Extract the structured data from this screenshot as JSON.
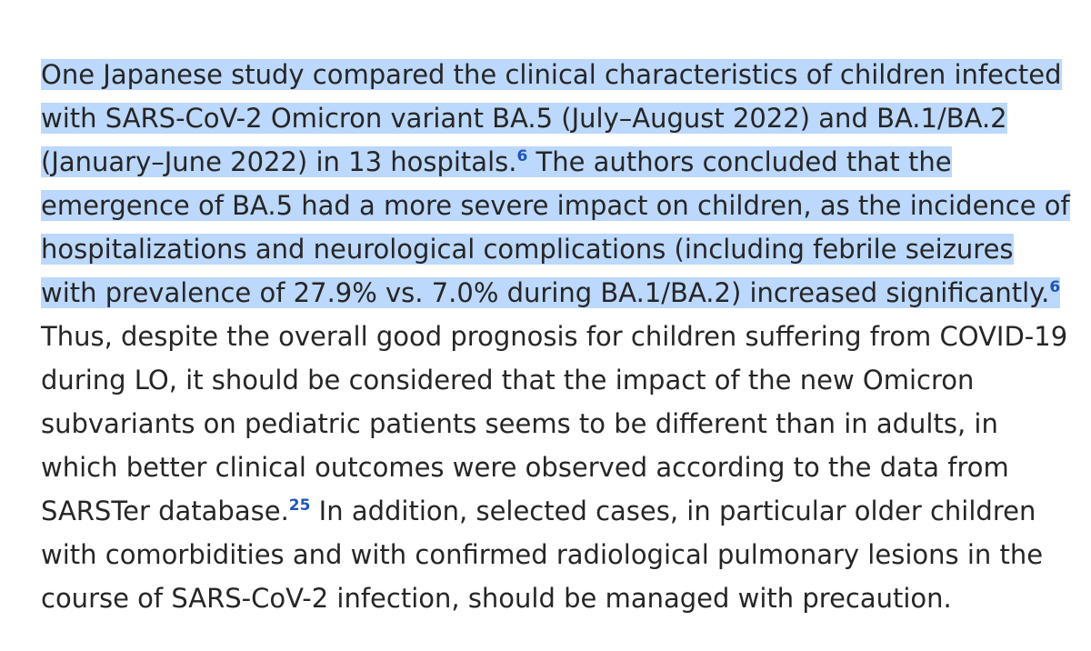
{
  "paragraph": {
    "line1": "One Japanese study compared the clinical characteristics of children infected",
    "line2": "with SARS-CoV-2 Omicron variant BA.5 (July–August 2022) and BA.1/BA.2",
    "line3a": "(January–June 2022) in 13 hospitals.",
    "ref1": "6",
    "line3b": " The authors concluded that the",
    "line4": "emergence of BA.5 had a more severe impact on children, as the incidence of",
    "line5": "hospitalizations and neurological complications (including febrile seizures",
    "line6a": "with prevalence of 27.9% vs. 7.0% during BA.1/BA.2) increased significantly.",
    "ref2": "6",
    "line7": "Thus, despite the overall good prognosis for children suffering from COVID-19",
    "line8": "during LO, it should be considered that the impact of the new Omicron",
    "line9": "subvariants on pediatric patients seems to be different than in adults, in",
    "line10": "which better clinical outcomes were observed according to the data from",
    "line11a": "SARSTer database.",
    "ref3": "25",
    "line11b": " In addition, selected cases, in particular older children",
    "line12": "with comorbidities and with confirmed radiological pulmonary lesions in the",
    "line13": "course of SARS-CoV-2 infection, should be managed with precaution."
  },
  "colors": {
    "text": "#262626",
    "selection_highlight": "#bcd8fc",
    "reference_link": "#1d56b8",
    "background": "#ffffff"
  }
}
